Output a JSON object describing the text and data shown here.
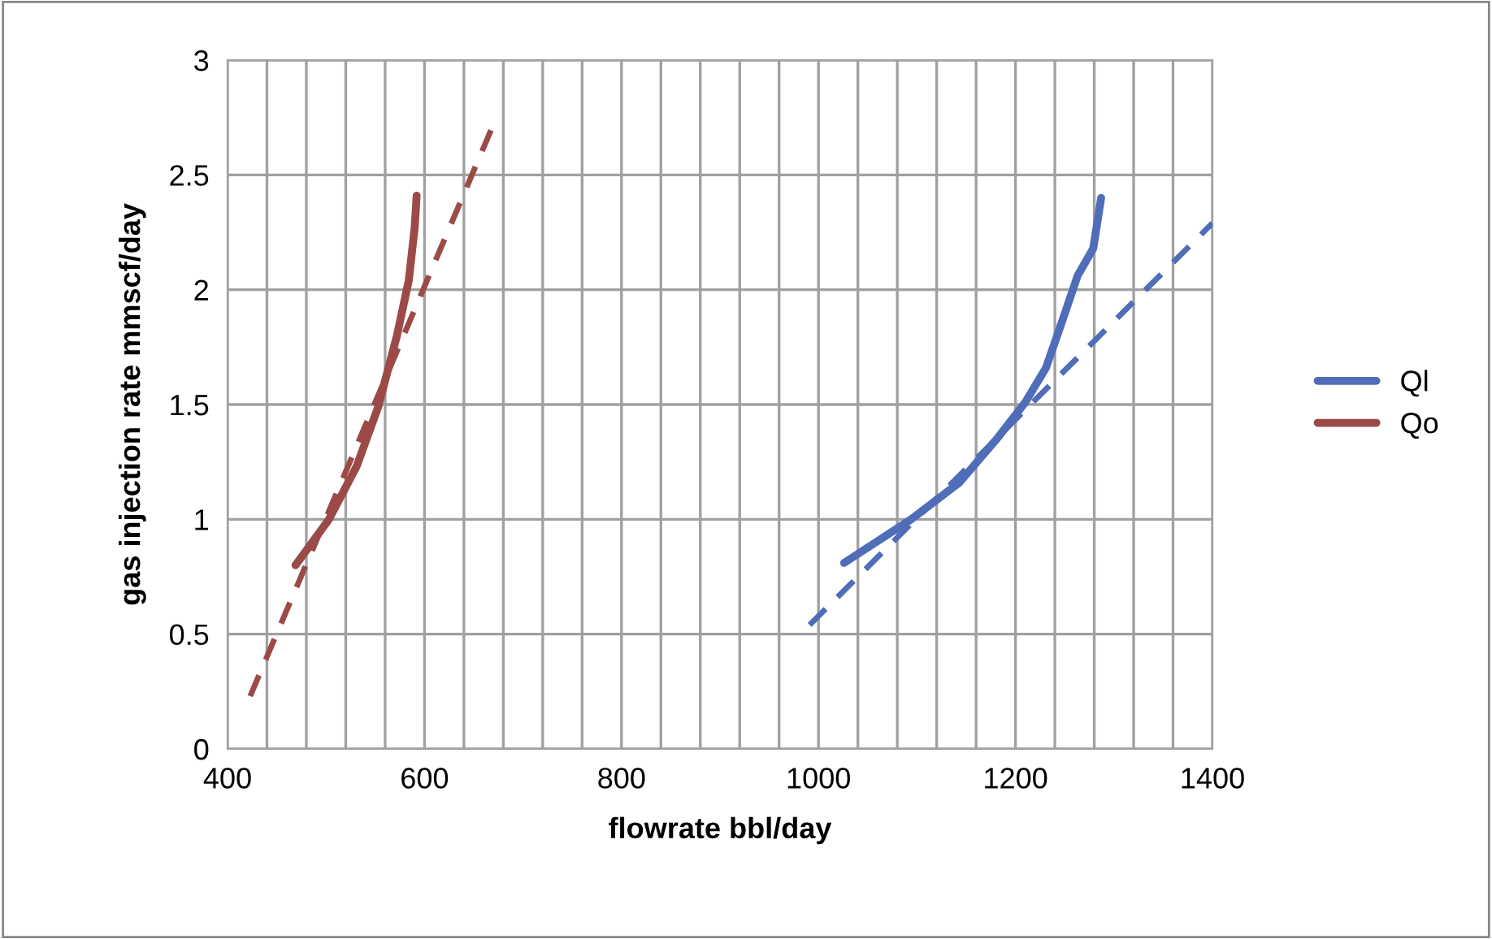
{
  "chart_data": {
    "type": "line",
    "xlabel": "flowrate bbl/day",
    "ylabel": "gas injection rate mmscf/day",
    "xlim": [
      400,
      1400
    ],
    "xticks": [
      400,
      {
        "value": 440,
        "label": null
      },
      {
        "value": 480,
        "label": null
      },
      {
        "value": 520,
        "label": null
      },
      {
        "value": 560,
        "label": null
      },
      600,
      {
        "value": 640,
        "label": null
      },
      {
        "value": 680,
        "label": null
      },
      {
        "value": 720,
        "label": null
      },
      {
        "value": 760,
        "label": null
      },
      800,
      {
        "value": 840,
        "label": null
      },
      {
        "value": 880,
        "label": null
      },
      {
        "value": 920,
        "label": null
      },
      {
        "value": 960,
        "label": null
      },
      1000,
      {
        "value": 1040,
        "label": null
      },
      {
        "value": 1080,
        "label": null
      },
      {
        "value": 1120,
        "label": null
      },
      {
        "value": 1160,
        "label": null
      },
      1200,
      {
        "value": 1240,
        "label": null
      },
      {
        "value": 1280,
        "label": null
      },
      {
        "value": 1320,
        "label": null
      },
      {
        "value": 1360,
        "label": null
      },
      1400
    ],
    "ylim": [
      0,
      3
    ],
    "yticks": [
      0,
      0.5,
      1,
      1.5,
      2,
      2.5,
      3
    ],
    "grid": true,
    "legend": "right",
    "marker": "none",
    "series": [
      {
        "name": "Ql",
        "color": "#4f6db8",
        "line_style": "solid",
        "x": [
          1026,
          1094,
          1143,
          1181,
          1210,
          1231,
          1248,
          1263,
          1279,
          1287
        ],
        "values": [
          0.81,
          1.0,
          1.16,
          1.35,
          1.51,
          1.66,
          1.87,
          2.06,
          2.18,
          2.4
        ]
      },
      {
        "name": "Qo",
        "color": "#9b4a48",
        "line_style": "solid",
        "x": [
          469,
          503,
          531,
          553,
          572,
          584,
          590,
          592
        ],
        "values": [
          0.8,
          1.0,
          1.23,
          1.49,
          1.8,
          2.04,
          2.27,
          2.41
        ]
      },
      {
        "color": "#4f6db8",
        "line_style": "dashed",
        "x": [
          991,
          1400
        ],
        "values": [
          0.54,
          2.29
        ]
      },
      {
        "color": "#9b4a48",
        "line_style": "dashed",
        "x": [
          423,
          668
        ],
        "values": [
          0.23,
          2.7
        ]
      }
    ]
  }
}
